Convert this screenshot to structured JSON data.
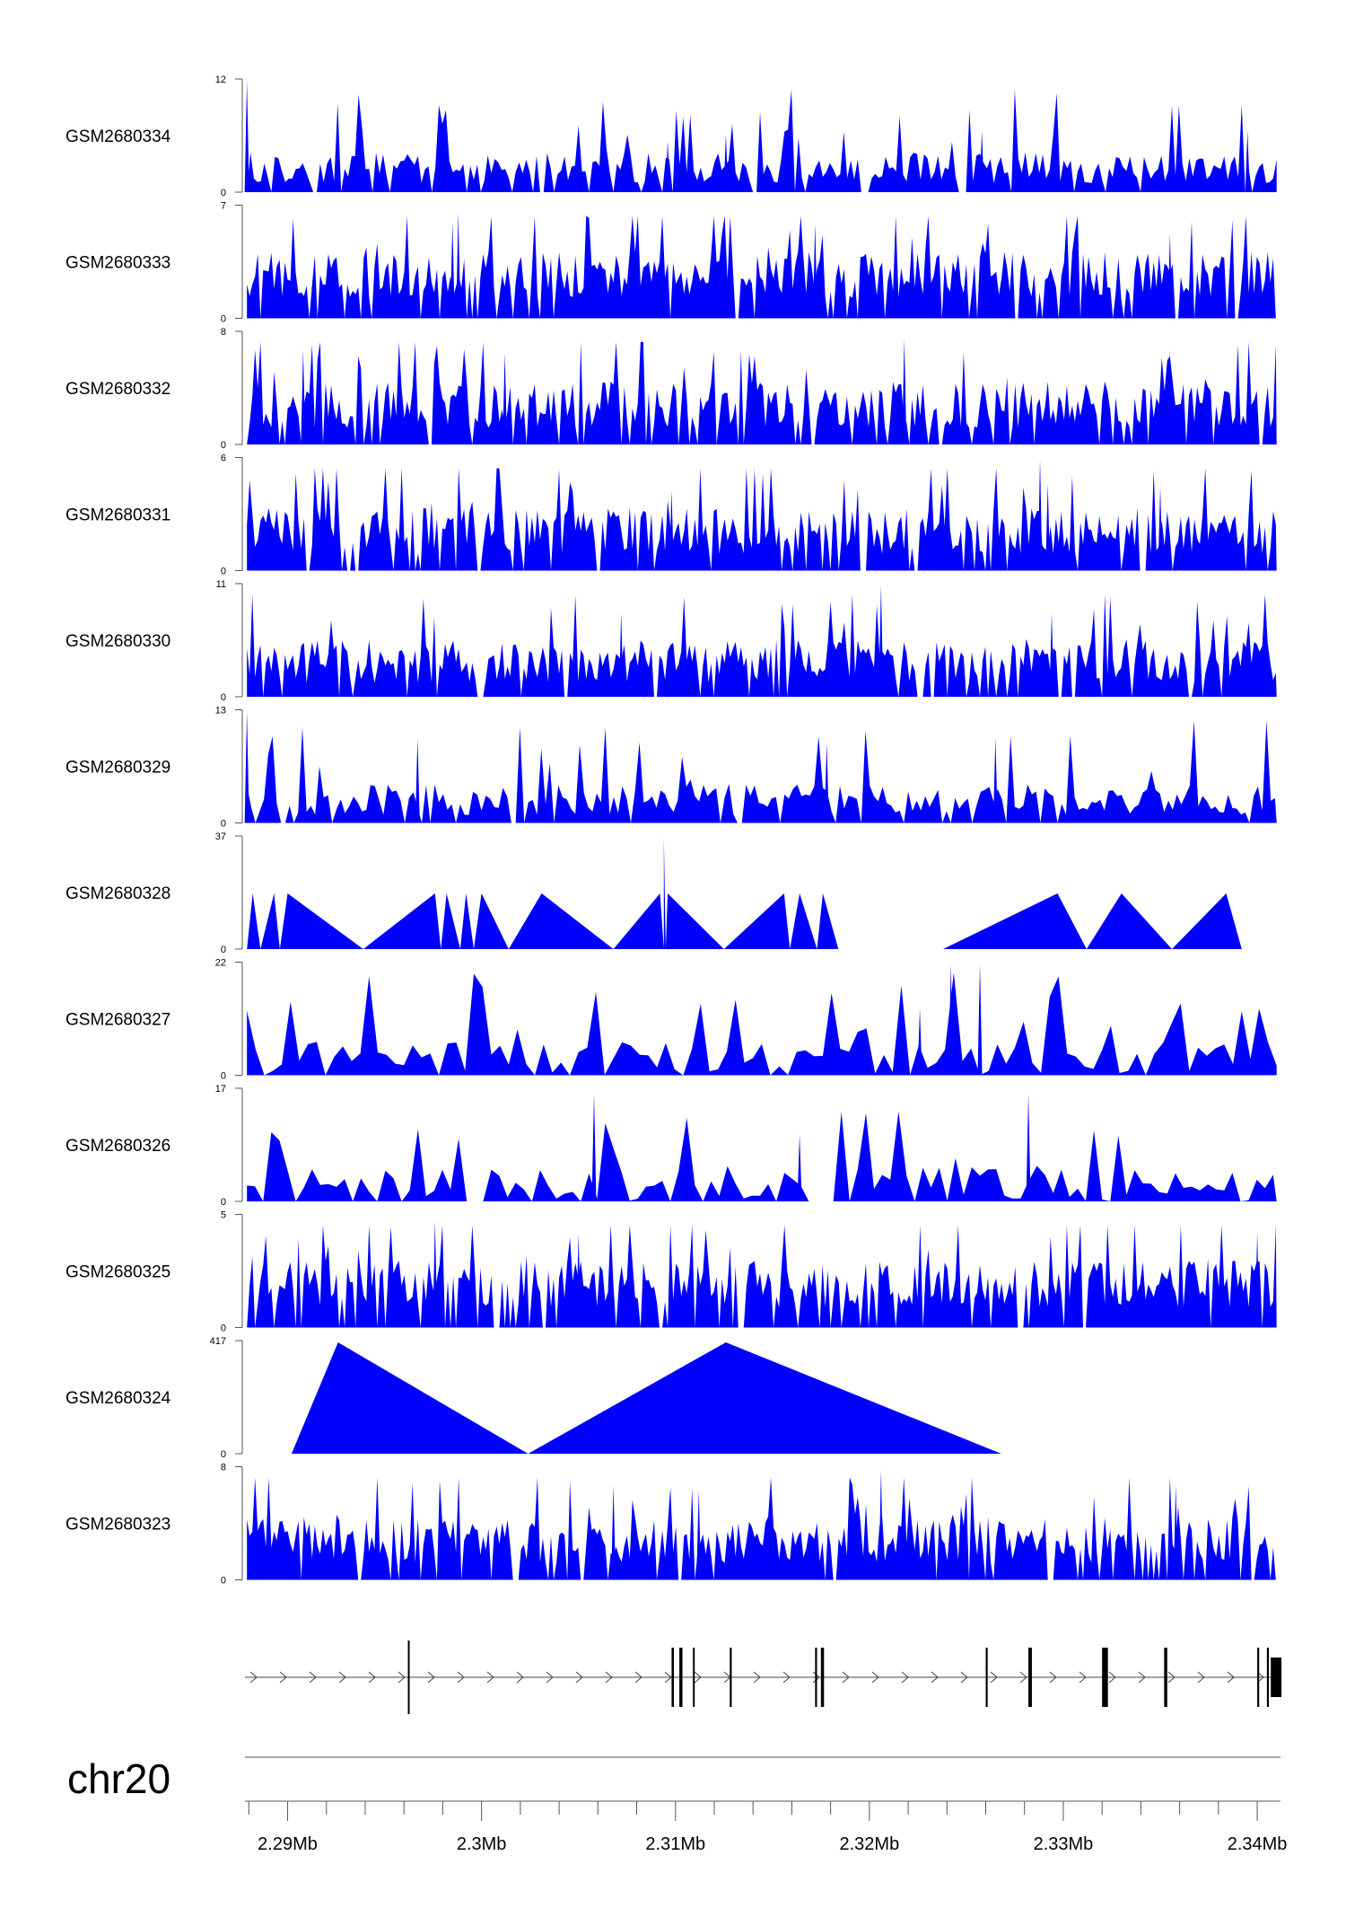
{
  "chart_data": {
    "type": "area",
    "x_unit": "Mb",
    "chromosome": "chr20",
    "xlim": [
      2.2878,
      2.3412
    ],
    "x_ticks": [
      {
        "value": 2.29,
        "label": "2.29Mb"
      },
      {
        "value": 2.3,
        "label": "2.3Mb"
      },
      {
        "value": 2.31,
        "label": "2.31Mb"
      },
      {
        "value": 2.32,
        "label": "2.32Mb"
      },
      {
        "value": 2.33,
        "label": "2.33Mb"
      },
      {
        "value": 2.34,
        "label": "2.34Mb"
      }
    ],
    "fill_color": "#0000ff",
    "tracks": [
      {
        "name": "GSM2680334",
        "ymax": 12,
        "ymin_label": "0",
        "ymax_label": "12",
        "kind": "dense",
        "seed": 34,
        "base": 0.08,
        "noise": 0.28,
        "spike_rate": 0.09,
        "step": 0.00018,
        "spikes": [
          [
            2.2879,
            1.0
          ],
          [
            2.3096,
            0.46
          ],
          [
            2.3126,
            0.52
          ],
          [
            2.3258,
            0.55
          ],
          [
            2.3395,
            0.55
          ]
        ]
      },
      {
        "name": "GSM2680333",
        "ymax": 7,
        "ymin_label": "0",
        "ymax_label": "7",
        "kind": "dense",
        "seed": 33,
        "base": 0.18,
        "noise": 0.42,
        "spike_rate": 0.1,
        "step": 0.00014,
        "spikes": [
          [
            2.2988,
            0.95
          ],
          [
            2.2985,
            0.86
          ],
          [
            2.3172,
            0.85
          ],
          [
            2.3355,
            0.75
          ]
        ]
      },
      {
        "name": "GSM2680332",
        "ymax": 8,
        "ymin_label": "0",
        "ymax_label": "8",
        "kind": "dense",
        "seed": 32,
        "base": 0.15,
        "noise": 0.42,
        "spike_rate": 0.1,
        "step": 0.00014,
        "spikes": [
          [
            2.2908,
            0.85
          ],
          [
            2.3012,
            0.82
          ],
          [
            2.3218,
            0.95
          ],
          [
            2.3355,
            0.85
          ]
        ]
      },
      {
        "name": "GSM2680331",
        "ymax": 6,
        "ymin_label": "0",
        "ymax_label": "6",
        "kind": "dense",
        "seed": 31,
        "base": 0.15,
        "noise": 0.42,
        "spike_rate": 0.1,
        "step": 0.00014,
        "spikes": [
          [
            2.3098,
            0.72
          ],
          [
            2.3288,
            1.0
          ],
          [
            2.3292,
            0.78
          ],
          [
            2.335,
            0.75
          ]
        ]
      },
      {
        "name": "GSM2680330",
        "ymax": 11,
        "ymin_label": "0",
        "ymax_label": "11",
        "kind": "dense",
        "seed": 30,
        "base": 0.12,
        "noise": 0.4,
        "spike_rate": 0.1,
        "step": 0.00014,
        "spikes": [
          [
            2.3206,
            1.0
          ],
          [
            2.3072,
            0.75
          ],
          [
            2.3294,
            0.75
          ]
        ]
      },
      {
        "name": "GSM2680329",
        "ymax": 13,
        "ymin_label": "0",
        "ymax_label": "13",
        "kind": "dense",
        "seed": 29,
        "base": 0.07,
        "noise": 0.28,
        "spike_rate": 0.08,
        "step": 0.00022,
        "spikes": [
          [
            2.2879,
            1.0
          ],
          [
            2.2967,
            0.76
          ],
          [
            2.3178,
            0.72
          ],
          [
            2.3265,
            0.76
          ]
        ]
      },
      {
        "name": "GSM2680328",
        "ymax": 37,
        "ymin_label": "0",
        "ymax_label": "37",
        "kind": "sparse",
        "points": [
          [
            2.2879,
            0.0
          ],
          [
            2.2882,
            0.5
          ],
          [
            2.2886,
            0.0
          ],
          [
            2.2893,
            0.5
          ],
          [
            2.2896,
            0.0
          ],
          [
            2.29,
            0.5
          ],
          [
            2.2939,
            0.0
          ],
          [
            2.2976,
            0.5
          ],
          [
            2.2979,
            0.0
          ],
          [
            2.2982,
            0.5
          ],
          [
            2.2989,
            0.0
          ],
          [
            2.2992,
            0.5
          ],
          [
            2.2996,
            0.0
          ],
          [
            2.3,
            0.5
          ],
          [
            2.3014,
            0.0
          ],
          [
            2.3031,
            0.5
          ],
          [
            2.3068,
            0.0
          ],
          [
            2.3092,
            0.5
          ],
          [
            2.3094,
            0.0
          ],
          [
            2.3094,
            1.0
          ],
          [
            2.3095,
            0.0
          ],
          [
            2.3096,
            0.5
          ],
          [
            2.3125,
            0.0
          ],
          [
            2.3156,
            0.5
          ],
          [
            2.3159,
            0.0
          ],
          [
            2.3164,
            0.5
          ],
          [
            2.3173,
            0.0
          ],
          [
            2.3176,
            0.5
          ],
          [
            2.3184,
            0.0
          ],
          [
            2.3238,
            0.0
          ],
          [
            2.3297,
            0.5
          ],
          [
            2.3312,
            0.0
          ],
          [
            2.333,
            0.5
          ],
          [
            2.3356,
            0.0
          ],
          [
            2.3384,
            0.5
          ],
          [
            2.3392,
            0.0
          ]
        ]
      },
      {
        "name": "GSM2680327",
        "ymax": 22,
        "ymin_label": "0",
        "ymax_label": "22",
        "kind": "dense",
        "seed": 27,
        "base": 0.0,
        "noise": 0.3,
        "spike_rate": 0.15,
        "step": 0.00045,
        "spikes": [
          [
            2.3242,
            1.0
          ],
          [
            2.3257,
            1.0
          ],
          [
            2.3226,
            0.6
          ]
        ]
      },
      {
        "name": "GSM2680326",
        "ymax": 17,
        "ymin_label": "0",
        "ymax_label": "17",
        "kind": "dense",
        "seed": 26,
        "base": 0.0,
        "noise": 0.32,
        "spike_rate": 0.12,
        "step": 0.00042,
        "spikes": [
          [
            2.3058,
            0.97
          ],
          [
            2.3282,
            0.97
          ],
          [
            2.3164,
            0.6
          ]
        ]
      },
      {
        "name": "GSM2680325",
        "ymax": 5,
        "ymin_label": "0",
        "ymax_label": "5",
        "kind": "dense",
        "seed": 25,
        "base": 0.18,
        "noise": 0.42,
        "spike_rate": 0.1,
        "step": 0.00014,
        "spikes": [
          [
            2.2976,
            0.96
          ],
          [
            2.305,
            0.84
          ],
          [
            2.34,
            0.85
          ]
        ]
      },
      {
        "name": "GSM2680324",
        "ymax": 417,
        "ymin_label": "0",
        "ymax_label": "417",
        "kind": "sparse",
        "points": [
          [
            2.2902,
            0.0
          ],
          [
            2.2926,
            1.0
          ],
          [
            2.3024,
            0.0
          ],
          [
            2.3126,
            1.0
          ],
          [
            2.3268,
            0.0
          ]
        ]
      },
      {
        "name": "GSM2680323",
        "ymax": 8,
        "ymin_label": "0",
        "ymax_label": "8",
        "kind": "dense",
        "seed": 23,
        "base": 0.15,
        "noise": 0.42,
        "spike_rate": 0.1,
        "step": 0.00014,
        "spikes": [
          [
            2.3206,
            0.98
          ],
          [
            2.3068,
            0.85
          ],
          [
            2.3112,
            0.8
          ],
          [
            2.3358,
            0.85
          ]
        ]
      }
    ],
    "gene_model": {
      "strand": "+",
      "exons": [
        {
          "x": 2.2962,
          "w": 5e-05,
          "tall": true
        },
        {
          "x": 2.3098,
          "w": 0.00012,
          "tall": false
        },
        {
          "x": 2.3102,
          "w": 0.00016,
          "tall": false
        },
        {
          "x": 2.3109,
          "w": 9e-05,
          "tall": false
        },
        {
          "x": 2.3128,
          "w": 0.0001,
          "tall": false
        },
        {
          "x": 2.3172,
          "w": 0.0001,
          "tall": false
        },
        {
          "x": 2.3175,
          "w": 0.00016,
          "tall": false
        },
        {
          "x": 2.326,
          "w": 0.0001,
          "tall": false
        },
        {
          "x": 2.3282,
          "w": 0.00018,
          "tall": false
        },
        {
          "x": 2.332,
          "w": 0.0003,
          "tall": false
        },
        {
          "x": 2.3352,
          "w": 0.00016,
          "tall": false
        },
        {
          "x": 2.34,
          "w": 0.0001,
          "tall": false
        },
        {
          "x": 2.3405,
          "w": 0.0001,
          "tall": false
        },
        {
          "x": 2.3407,
          "w": 0.00055,
          "tall": false,
          "thick": true
        }
      ]
    }
  }
}
